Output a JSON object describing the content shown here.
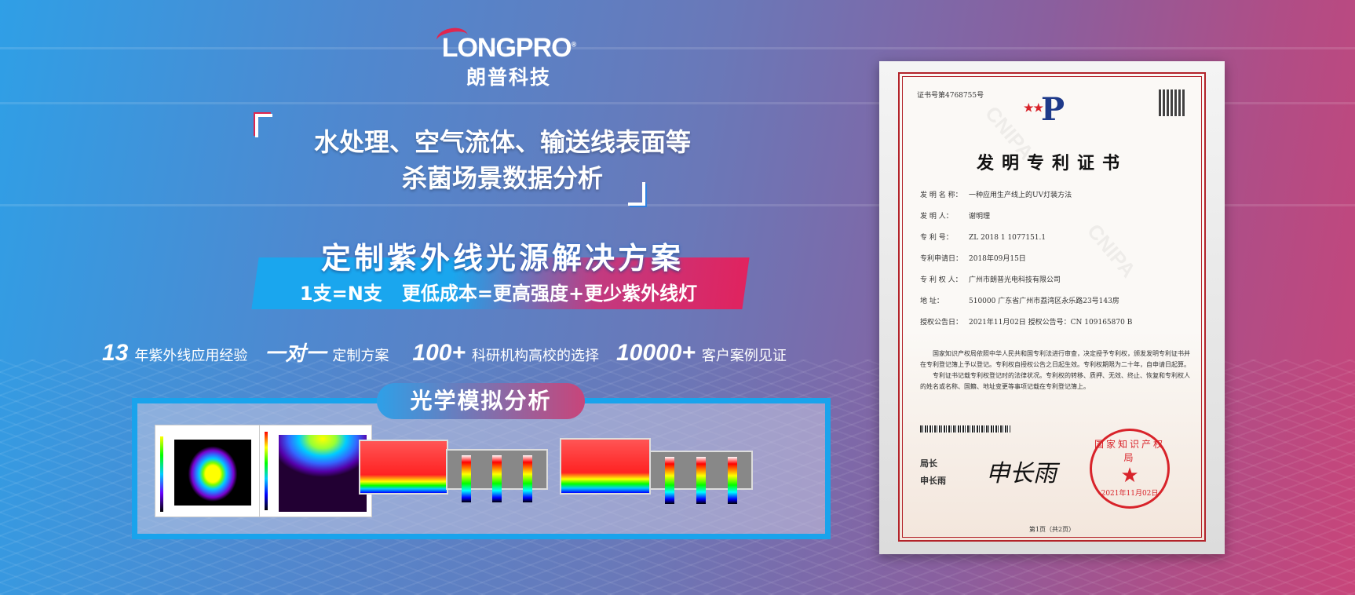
{
  "brand": {
    "name_en": "LONGPRO",
    "registered": "®",
    "name_cn": "朗普科技"
  },
  "headline": {
    "line1": "水处理、空气流体、输送线表面等",
    "line2": "杀菌场景数据分析"
  },
  "solution": {
    "title": "定制紫外线光源解决方案",
    "subtitle": "1支=N支   更低成本=更高强度+更少紫外线灯"
  },
  "stats": [
    {
      "value": "13",
      "label": "年紫外线应用经验"
    },
    {
      "value": "一对一",
      "label": "定制方案"
    },
    {
      "value": "100+",
      "label": "科研机构高校的选择"
    },
    {
      "value": "10000+",
      "label": "客户案例见证"
    }
  ],
  "optics": {
    "title": "光学模拟分析"
  },
  "colors": {
    "accent_blue": "#19a3ec",
    "accent_pink": "#e0235f",
    "seal_red": "#d8232a"
  },
  "certificate": {
    "number": "证书号第4768755号",
    "title": "发明专利证书",
    "watermark": "CNIPA",
    "fields": [
      {
        "key": "发 明 名 称：",
        "value": "一种应用生产线上的UV灯装方法"
      },
      {
        "key": "发  明  人：",
        "value": "谢明理"
      },
      {
        "key": "专  利  号：",
        "value": "ZL 2018 1 1077151.1"
      },
      {
        "key": "专利申请日：",
        "value": "2018年09月15日"
      },
      {
        "key": "专 利 权 人：",
        "value": "广州市朗普光电科技有限公司"
      },
      {
        "key": "地      址：",
        "value": "510000 广东省广州市荔湾区永乐路23号143房"
      },
      {
        "key": "授权公告日：",
        "value": "2021年11月02日      授权公告号：CN 109165870 B"
      }
    ],
    "body1": "国家知识产权局依照中华人民共和国专利法进行审查，决定授予专利权，颁发发明专利证书并在专利登记簿上予以登记。专利权自授权公告之日起生效。专利权期限为二十年，自申请日起算。",
    "body2": "专利证书记载专利权登记时的法律状况。专利权的转移、质押、无效、终止、恢复和专利权人的姓名或名称、国籍、地址变更等事项记载在专利登记簿上。",
    "director_title": "局长",
    "director_name": "申长雨",
    "signature": "申长雨",
    "seal_text": "国家知识产权局",
    "seal_date": "2021年11月02日",
    "page": "第1页（共2页）"
  }
}
